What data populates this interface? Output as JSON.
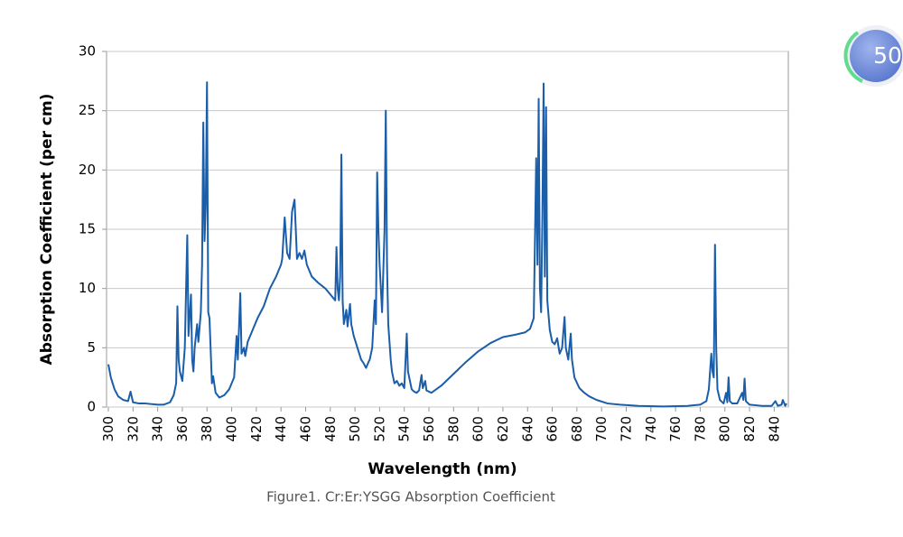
{
  "chart_data": {
    "type": "line",
    "xlabel": "Wavelength (nm)",
    "ylabel": "Absorption Coefficient (per cm)",
    "caption": "Figure1. Cr:Er:YSGG Absorption Coefficient",
    "xlim": [
      300,
      850
    ],
    "ylim": [
      0,
      30
    ],
    "xticks": [
      300,
      320,
      340,
      360,
      380,
      400,
      420,
      440,
      460,
      480,
      500,
      520,
      540,
      560,
      580,
      600,
      620,
      640,
      660,
      680,
      700,
      720,
      740,
      760,
      780,
      800,
      820,
      840
    ],
    "yticks": [
      0,
      5,
      10,
      15,
      20,
      25,
      30
    ],
    "grid": true,
    "series": [
      {
        "name": null,
        "color": "#1a5da8",
        "x": [
          300,
          302,
          305,
          308,
          312,
          316,
          318,
          320,
          325,
          330,
          340,
          345,
          350,
          353,
          355,
          356,
          357,
          358,
          360,
          362,
          364,
          365,
          367,
          368,
          369,
          370,
          372,
          373,
          375,
          376,
          377,
          378,
          379,
          380,
          381,
          382,
          384,
          385,
          387,
          390,
          394,
          398,
          402,
          404,
          405,
          407,
          408,
          410,
          411,
          413,
          417,
          421,
          426,
          431,
          436,
          440,
          441,
          443,
          445,
          447,
          449,
          451,
          452,
          453,
          455,
          457,
          459,
          461,
          465,
          470,
          476,
          480,
          484,
          485,
          486,
          487,
          488,
          489,
          490,
          491,
          493,
          494,
          496,
          497,
          499,
          502,
          505,
          507,
          509,
          511,
          512,
          514,
          516,
          517,
          518,
          519,
          520,
          522,
          524,
          525,
          526,
          527,
          529,
          530,
          532,
          534,
          536,
          538,
          540,
          542,
          543,
          544,
          546,
          548,
          550,
          552,
          554,
          555,
          557,
          558,
          560,
          562,
          570,
          580,
          590,
          600,
          610,
          620,
          630,
          638,
          642,
          645,
          647,
          648,
          649,
          650,
          651,
          652,
          653,
          654,
          655,
          656,
          658,
          660,
          662,
          664,
          666,
          668,
          670,
          671,
          673,
          675,
          676,
          678,
          682,
          686,
          690,
          696,
          705,
          715,
          730,
          750,
          770,
          780,
          785,
          787,
          789,
          790,
          791,
          792,
          793,
          794,
          796,
          799,
          801,
          802,
          803,
          804,
          806,
          810,
          814,
          815,
          816,
          817,
          820,
          830,
          838,
          841,
          843,
          846,
          847,
          849,
          850
        ],
        "values": [
          3.6,
          2.5,
          1.5,
          0.9,
          0.6,
          0.5,
          1.3,
          0.4,
          0.3,
          0.3,
          0.2,
          0.2,
          0.4,
          1.0,
          2.0,
          8.5,
          4,
          3,
          2.2,
          5,
          14.5,
          6,
          9.5,
          4,
          3,
          5,
          7,
          5.5,
          8,
          12,
          24,
          14,
          17,
          27.4,
          8,
          7.5,
          2,
          2.6,
          1.2,
          0.8,
          1.0,
          1.5,
          2.5,
          6,
          4,
          9.6,
          4.5,
          5,
          4.3,
          5.5,
          6.5,
          7.5,
          8.5,
          10,
          11,
          12,
          12.5,
          16,
          13,
          12.5,
          16.5,
          17.5,
          15,
          12.5,
          13,
          12.5,
          13.2,
          12,
          11,
          10.5,
          10,
          9.5,
          9,
          13.5,
          10,
          9,
          11,
          21.3,
          9,
          7,
          8.2,
          6.8,
          8.7,
          7,
          6,
          5,
          4,
          3.7,
          3.3,
          3.8,
          4,
          5,
          9,
          7,
          19.8,
          15,
          12,
          8,
          15,
          25,
          12,
          7,
          4,
          3,
          2,
          2.2,
          1.8,
          2,
          1.6,
          6.2,
          3,
          2.5,
          1.5,
          1.3,
          1.2,
          1.4,
          2.7,
          1.6,
          2.2,
          1.4,
          1.3,
          1.2,
          1.8,
          2.8,
          3.8,
          4.7,
          5.4,
          5.9,
          6.1,
          6.3,
          6.6,
          7.5,
          21,
          12,
          26,
          10,
          8,
          16,
          27.3,
          11,
          25.3,
          9,
          6.5,
          5.5,
          5.3,
          5.8,
          4.5,
          5,
          7.6,
          5,
          4,
          6.2,
          4,
          2.5,
          1.6,
          1.2,
          0.9,
          0.6,
          0.3,
          0.2,
          0.1,
          0.05,
          0.1,
          0.2,
          0.5,
          1.5,
          4.5,
          3,
          2.5,
          13.7,
          5,
          1.5,
          0.6,
          0.3,
          1.2,
          0.4,
          2.5,
          0.5,
          0.3,
          0.3,
          1.2,
          0.6,
          2.4,
          0.5,
          0.2,
          0.1,
          0.1,
          0.5,
          0.1,
          0.2,
          0.6,
          0.1,
          0.3
        ]
      }
    ]
  },
  "badge": "50"
}
